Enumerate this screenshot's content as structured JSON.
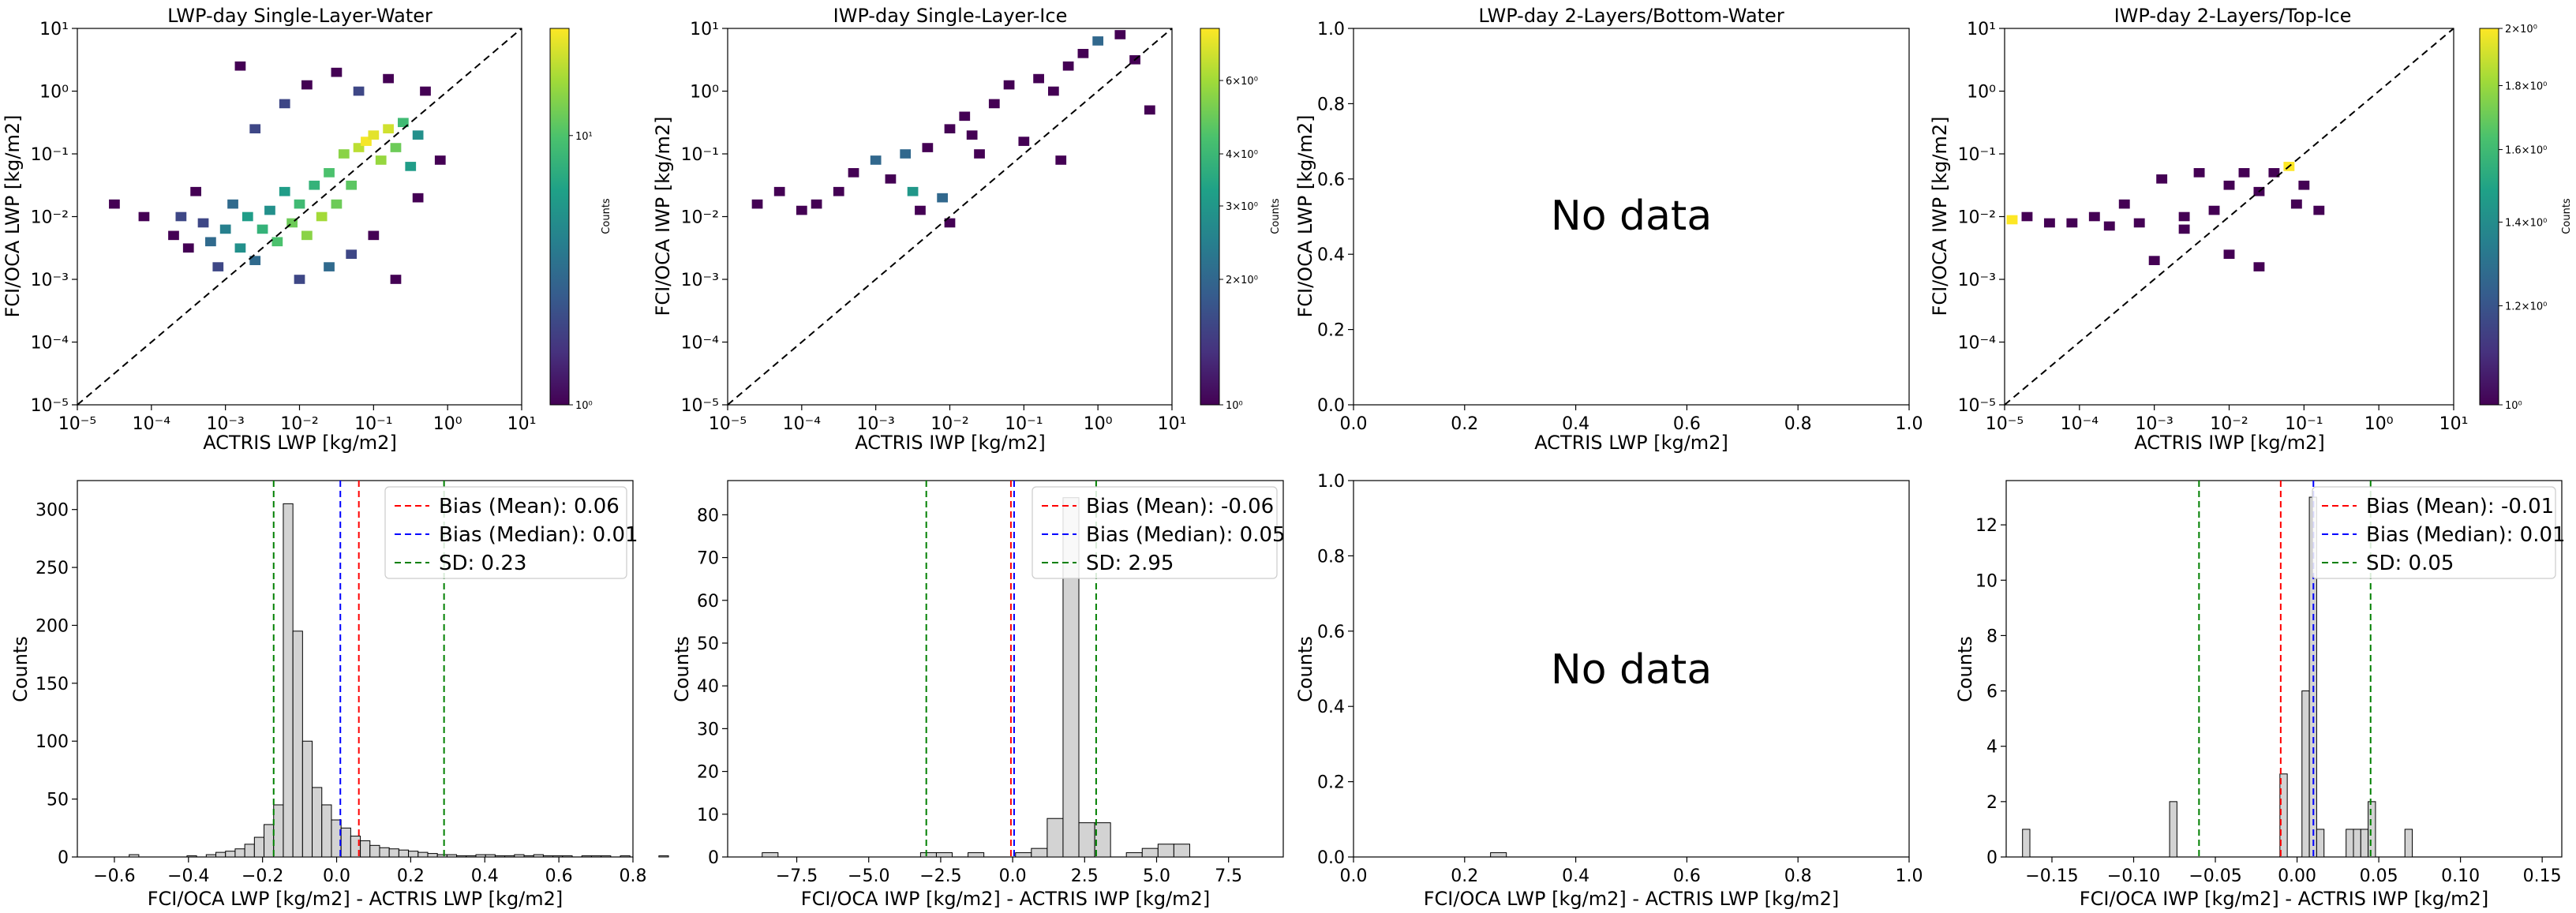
{
  "chart_data": [
    {
      "id": "p1",
      "type": "heatmap",
      "title": "LWP-day Single-Layer-Water",
      "xlabel": "ACTRIS LWP [kg/m2]",
      "ylabel": "FCI/OCA LWP [kg/m2]",
      "xscale": "log",
      "yscale": "log",
      "xlim": [
        1e-05,
        10
      ],
      "ylim": [
        1e-05,
        10
      ],
      "x_ticks": [
        "10⁻⁵",
        "10⁻⁴",
        "10⁻³",
        "10⁻²",
        "10⁻¹",
        "10⁰",
        "10¹"
      ],
      "y_ticks": [
        "10⁻⁵",
        "10⁻⁴",
        "10⁻³",
        "10⁻²",
        "10⁻¹",
        "10⁰",
        "10¹"
      ],
      "one_to_one_line": true,
      "colorbar": {
        "label": "Counts",
        "scale": "log",
        "range": [
          1,
          25
        ],
        "ticks": [
          "10⁰",
          "10¹"
        ],
        "colormap": "viridis"
      },
      "cells": [
        [
          -4.5,
          -1.8,
          1
        ],
        [
          -4.1,
          -2.0,
          1
        ],
        [
          -3.7,
          -2.3,
          1
        ],
        [
          -3.6,
          -2.0,
          2
        ],
        [
          -3.5,
          -2.5,
          1
        ],
        [
          -3.4,
          -1.6,
          1
        ],
        [
          -3.3,
          -2.1,
          2
        ],
        [
          -3.2,
          -2.4,
          3
        ],
        [
          -3.1,
          -2.8,
          2
        ],
        [
          -3.0,
          -2.2,
          4
        ],
        [
          -2.9,
          -1.8,
          3
        ],
        [
          -2.8,
          -2.5,
          5
        ],
        [
          -2.7,
          -2.0,
          6
        ],
        [
          -2.6,
          -2.7,
          3
        ],
        [
          -2.5,
          -2.2,
          8
        ],
        [
          -2.4,
          -1.9,
          5
        ],
        [
          -2.3,
          -2.4,
          10
        ],
        [
          -2.2,
          -1.6,
          6
        ],
        [
          -2.1,
          -2.1,
          12
        ],
        [
          -2.0,
          -1.8,
          9
        ],
        [
          -1.9,
          -2.3,
          14
        ],
        [
          -1.8,
          -1.5,
          8
        ],
        [
          -1.7,
          -2.0,
          16
        ],
        [
          -1.6,
          -1.3,
          10
        ],
        [
          -1.5,
          -1.8,
          12
        ],
        [
          -1.4,
          -1.0,
          14
        ],
        [
          -1.3,
          -1.5,
          11
        ],
        [
          -1.2,
          -0.9,
          18
        ],
        [
          -1.1,
          -0.8,
          24
        ],
        [
          -1.0,
          -0.7,
          22
        ],
        [
          -0.9,
          -1.1,
          15
        ],
        [
          -0.8,
          -0.6,
          20
        ],
        [
          -0.7,
          -0.9,
          12
        ],
        [
          -0.6,
          -0.5,
          9
        ],
        [
          -0.5,
          -1.2,
          6
        ],
        [
          -0.4,
          -0.7,
          5
        ],
        [
          -2.6,
          -0.6,
          2
        ],
        [
          -2.2,
          -0.2,
          2
        ],
        [
          -1.9,
          0.1,
          1
        ],
        [
          -1.5,
          0.3,
          1
        ],
        [
          -2.0,
          -3.0,
          2
        ],
        [
          -1.6,
          -2.8,
          3
        ],
        [
          -1.3,
          -2.6,
          2
        ],
        [
          -1.0,
          -2.3,
          1
        ],
        [
          -0.7,
          -3.0,
          1
        ],
        [
          -0.4,
          -1.7,
          1
        ],
        [
          -0.1,
          -1.1,
          1
        ],
        [
          -2.8,
          0.4,
          1
        ],
        [
          -1.2,
          0.0,
          2
        ],
        [
          -0.8,
          0.2,
          1
        ],
        [
          -0.3,
          0.0,
          1
        ]
      ]
    },
    {
      "id": "p2",
      "type": "heatmap",
      "title": "IWP-day Single-Layer-Ice",
      "xlabel": "ACTRIS IWP [kg/m2]",
      "ylabel": "FCI/OCA IWP [kg/m2]",
      "xscale": "log",
      "yscale": "log",
      "xlim": [
        1e-05,
        10
      ],
      "ylim": [
        1e-05,
        10
      ],
      "x_ticks": [
        "10⁻⁵",
        "10⁻⁴",
        "10⁻³",
        "10⁻²",
        "10⁻¹",
        "10⁰",
        "10¹"
      ],
      "y_ticks": [
        "10⁻⁵",
        "10⁻⁴",
        "10⁻³",
        "10⁻²",
        "10⁻¹",
        "10⁰",
        "10¹"
      ],
      "one_to_one_line": true,
      "colorbar": {
        "label": "Counts",
        "scale": "log",
        "range": [
          1,
          8
        ],
        "ticks": [
          "10⁰",
          "2×10⁰",
          "3×10⁰",
          "4×10⁰",
          "6×10⁰"
        ],
        "colormap": "viridis"
      },
      "cells": [
        [
          -4.6,
          -1.8,
          1
        ],
        [
          -4.3,
          -1.6,
          1
        ],
        [
          -4.0,
          -1.9,
          1
        ],
        [
          -3.8,
          -1.8,
          1
        ],
        [
          -3.5,
          -1.6,
          1
        ],
        [
          -3.3,
          -1.3,
          1
        ],
        [
          -3.0,
          -1.1,
          2
        ],
        [
          -2.8,
          -1.4,
          1
        ],
        [
          -2.6,
          -1.0,
          2
        ],
        [
          -2.5,
          -1.6,
          3
        ],
        [
          -2.3,
          -0.9,
          1
        ],
        [
          -2.1,
          -1.7,
          2
        ],
        [
          -2.0,
          -0.6,
          1
        ],
        [
          -1.8,
          -0.4,
          1
        ],
        [
          -1.6,
          -1.0,
          1
        ],
        [
          -1.4,
          -0.2,
          1
        ],
        [
          -1.2,
          0.1,
          1
        ],
        [
          -1.0,
          -0.8,
          1
        ],
        [
          -0.8,
          0.2,
          1
        ],
        [
          -0.6,
          0.0,
          1
        ],
        [
          -0.4,
          0.4,
          1
        ],
        [
          -0.2,
          0.6,
          1
        ],
        [
          0.0,
          0.8,
          2
        ],
        [
          0.3,
          0.9,
          1
        ],
        [
          0.5,
          0.5,
          1
        ],
        [
          0.7,
          -0.3,
          1
        ],
        [
          -0.5,
          -1.1,
          1
        ],
        [
          -2.4,
          -1.9,
          1
        ],
        [
          -2.0,
          -2.1,
          1
        ],
        [
          -1.7,
          -0.7,
          1
        ]
      ]
    },
    {
      "id": "p3",
      "type": "heatmap",
      "title": "LWP-day 2-Layers/Bottom-Water",
      "xlabel": "ACTRIS LWP [kg/m2]",
      "ylabel": "FCI/OCA LWP [kg/m2]",
      "xscale": "linear",
      "yscale": "linear",
      "xlim": [
        0,
        1
      ],
      "ylim": [
        0,
        1
      ],
      "x_ticks": [
        "0.0",
        "0.2",
        "0.4",
        "0.6",
        "0.8",
        "1.0"
      ],
      "y_ticks": [
        "0.0",
        "0.2",
        "0.4",
        "0.6",
        "0.8",
        "1.0"
      ],
      "annotation": "No data",
      "cells": []
    },
    {
      "id": "p4",
      "type": "heatmap",
      "title": "IWP-day 2-Layers/Top-Ice",
      "xlabel": "ACTRIS IWP [kg/m2]",
      "ylabel": "FCI/OCA IWP [kg/m2]",
      "xscale": "log",
      "yscale": "log",
      "xlim": [
        1e-05,
        10
      ],
      "ylim": [
        1e-05,
        10
      ],
      "x_ticks": [
        "10⁻⁵",
        "10⁻⁴",
        "10⁻³",
        "10⁻²",
        "10⁻¹",
        "10⁰",
        "10¹"
      ],
      "y_ticks": [
        "10⁻⁵",
        "10⁻⁴",
        "10⁻³",
        "10⁻²",
        "10⁻¹",
        "10⁰",
        "10¹"
      ],
      "one_to_one_line": true,
      "colorbar": {
        "label": "Counts",
        "scale": "log",
        "range": [
          1,
          2
        ],
        "ticks": [
          "10⁰",
          "1.2×10⁰",
          "1.4×10⁰",
          "1.6×10⁰",
          "1.8×10⁰",
          "2×10⁰"
        ],
        "colormap": "viridis"
      },
      "cells": [
        [
          -4.9,
          -2.05,
          2
        ],
        [
          -4.7,
          -2.0,
          1
        ],
        [
          -4.4,
          -2.1,
          1
        ],
        [
          -4.1,
          -2.1,
          1
        ],
        [
          -3.8,
          -2.0,
          1
        ],
        [
          -3.6,
          -2.15,
          1
        ],
        [
          -3.4,
          -1.8,
          1
        ],
        [
          -3.2,
          -2.1,
          1
        ],
        [
          -2.9,
          -1.4,
          1
        ],
        [
          -2.6,
          -2.0,
          1
        ],
        [
          -2.4,
          -1.3,
          1
        ],
        [
          -2.2,
          -1.9,
          1
        ],
        [
          -2.0,
          -1.5,
          1
        ],
        [
          -1.8,
          -1.3,
          1
        ],
        [
          -1.6,
          -1.6,
          1
        ],
        [
          -1.4,
          -1.3,
          1
        ],
        [
          -1.2,
          -1.2,
          2
        ],
        [
          -1.0,
          -1.5,
          1
        ],
        [
          -0.8,
          -1.9,
          1
        ],
        [
          -1.6,
          -2.8,
          1
        ],
        [
          -2.0,
          -2.6,
          1
        ],
        [
          -2.6,
          -2.2,
          1
        ],
        [
          -3.0,
          -2.7,
          1
        ],
        [
          -1.1,
          -1.8,
          1
        ]
      ]
    },
    {
      "id": "h1",
      "type": "histogram",
      "xlabel": "FCI/OCA LWP [kg/m2] - ACTRIS LWP [kg/m2]",
      "ylabel": "Counts",
      "xlim": [
        -0.7,
        0.8
      ],
      "ylim": [
        0,
        325
      ],
      "x_ticks": [
        -0.6,
        -0.4,
        -0.2,
        0.0,
        0.2,
        0.4,
        0.6,
        0.8
      ],
      "x_tick_labels": [
        "−0.6",
        "−0.4",
        "−0.2",
        "0.0",
        "0.2",
        "0.4",
        "0.6",
        "0.8"
      ],
      "y_ticks": [
        0,
        50,
        100,
        150,
        200,
        250,
        300
      ],
      "y_tick_labels": [
        "0",
        "50",
        "100",
        "150",
        "200",
        "250",
        "300"
      ],
      "bins": {
        "start": -0.56,
        "width": 0.026,
        "counts": [
          2,
          0,
          0,
          0,
          0,
          0,
          1,
          0,
          2,
          4,
          5,
          7,
          11,
          17,
          28,
          45,
          305,
          195,
          100,
          60,
          45,
          32,
          25,
          18,
          14,
          10,
          8,
          7,
          6,
          5,
          4,
          3,
          2,
          2,
          1,
          1,
          2,
          2,
          1,
          1,
          2,
          1,
          2,
          1,
          1,
          1,
          0,
          1,
          1,
          1,
          0,
          1,
          0,
          0,
          0,
          1
        ]
      },
      "lines": [
        {
          "label": "Bias (Mean): 0.06",
          "value": 0.06,
          "color": "#ff0000"
        },
        {
          "label": "Bias (Median): 0.01",
          "value": 0.01,
          "color": "#0000ff"
        },
        {
          "label": "SD: 0.23",
          "values": [
            -0.17,
            0.29
          ],
          "color": "#008000"
        }
      ]
    },
    {
      "id": "h2",
      "type": "histogram",
      "xlabel": "FCI/OCA IWP [kg/m2] - ACTRIS IWP [kg/m2]",
      "ylabel": "Counts",
      "xlim": [
        -9.9,
        9.4
      ],
      "ylim": [
        0,
        88
      ],
      "x_ticks": [
        -7.5,
        -5.0,
        -2.5,
        0.0,
        2.5,
        5.0,
        7.5
      ],
      "x_tick_labels": [
        "−7.5",
        "−5.0",
        "−2.5",
        "0.0",
        "2.5",
        "5.0",
        "7.5"
      ],
      "y_ticks": [
        0,
        10,
        20,
        30,
        40,
        50,
        60,
        70,
        80
      ],
      "y_tick_labels": [
        "0",
        "10",
        "20",
        "30",
        "40",
        "50",
        "60",
        "70",
        "80"
      ],
      "bins": {
        "start": -8.7,
        "width": 0.55,
        "counts": [
          1,
          0,
          0,
          0,
          0,
          0,
          0,
          0,
          0,
          0,
          1,
          1,
          0,
          1,
          0,
          0,
          1,
          2,
          9,
          84,
          8,
          8,
          0,
          1,
          2,
          3,
          3,
          0,
          0,
          0,
          0,
          0,
          0,
          0,
          0,
          0,
          0,
          0,
          0,
          0,
          0,
          0,
          0,
          0,
          0,
          0,
          1
        ]
      },
      "lines": [
        {
          "label": "Bias (Mean): -0.06",
          "value": -0.06,
          "color": "#ff0000"
        },
        {
          "label": "Bias (Median): 0.05",
          "value": 0.05,
          "color": "#0000ff"
        },
        {
          "label": "SD: 2.95",
          "values": [
            -3.0,
            2.9
          ],
          "color": "#008000"
        }
      ]
    },
    {
      "id": "h3",
      "type": "histogram",
      "xlabel": "FCI/OCA LWP [kg/m2] - ACTRIS LWP [kg/m2]",
      "ylabel": "Counts",
      "xlim": [
        0,
        1
      ],
      "ylim": [
        0,
        1
      ],
      "x_ticks": [
        0,
        0.2,
        0.4,
        0.6,
        0.8,
        1.0
      ],
      "x_tick_labels": [
        "0.0",
        "0.2",
        "0.4",
        "0.6",
        "0.8",
        "1.0"
      ],
      "y_ticks": [
        0,
        0.2,
        0.4,
        0.6,
        0.8,
        1.0
      ],
      "y_tick_labels": [
        "0.0",
        "0.2",
        "0.4",
        "0.6",
        "0.8",
        "1.0"
      ],
      "annotation": "No data",
      "lines": []
    },
    {
      "id": "h4",
      "type": "histogram",
      "xlabel": "FCI/OCA IWP [kg/m2] - ACTRIS IWP [kg/m2]",
      "ylabel": "Counts",
      "xlim": [
        -0.178,
        0.162
      ],
      "ylim": [
        0,
        13.6
      ],
      "x_ticks": [
        -0.15,
        -0.1,
        -0.05,
        0.0,
        0.05,
        0.1,
        0.15
      ],
      "x_tick_labels": [
        "−0.15",
        "−0.10",
        "−0.05",
        "0.00",
        "0.05",
        "0.10",
        "0.15"
      ],
      "y_ticks": [
        0,
        2,
        4,
        6,
        8,
        10,
        12
      ],
      "y_tick_labels": [
        "0",
        "2",
        "4",
        "6",
        "8",
        "10",
        "12"
      ],
      "bins": {
        "start": -0.168,
        "width": 0.0045,
        "counts": [
          1,
          0,
          0,
          0,
          0,
          0,
          0,
          0,
          0,
          0,
          0,
          0,
          0,
          0,
          0,
          0,
          0,
          0,
          0,
          0,
          2,
          0,
          0,
          0,
          0,
          0,
          0,
          0,
          0,
          0,
          0,
          0,
          0,
          0,
          0,
          3,
          0,
          0,
          6,
          13,
          1,
          0,
          0,
          0,
          1,
          1,
          1,
          2,
          0,
          0,
          0,
          0,
          1
        ]
      },
      "lines": [
        {
          "label": "Bias (Mean): -0.01",
          "value": -0.01,
          "color": "#ff0000"
        },
        {
          "label": "Bias (Median): 0.01",
          "value": 0.01,
          "color": "#0000ff"
        },
        {
          "label": "SD: 0.05",
          "values": [
            -0.06,
            0.045
          ],
          "color": "#008000"
        }
      ]
    }
  ]
}
